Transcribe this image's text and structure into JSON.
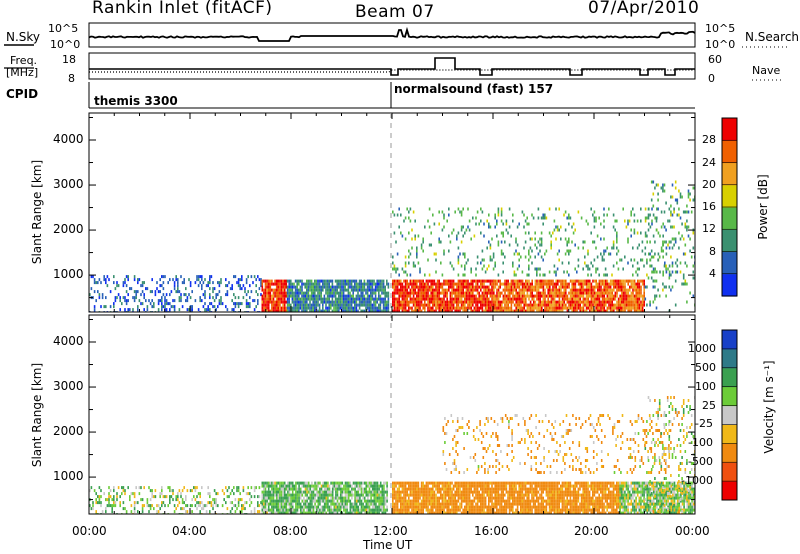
{
  "header": {
    "station": "Rankin Inlet (fitACF)",
    "beam": "Beam 07",
    "date": "07/Apr/2010"
  },
  "panels": {
    "nsky_label": "N.Sky",
    "nsearch_label": "N.Search",
    "freq_label_1": "Freq.",
    "freq_label_2": "[MHz]",
    "nave_label": "Nave",
    "cpid_label": "CPID",
    "nsky_ticks": [
      "10^5",
      "10^0"
    ],
    "nsearch_ticks": [
      "10^5",
      "10^0"
    ],
    "freq_ticks": [
      "18",
      "8"
    ],
    "nave_ticks": [
      "60",
      "0"
    ],
    "cpid_segments": [
      "themis 3300",
      "normalsound (fast) 157"
    ]
  },
  "axes": {
    "x_ticks": [
      "00:00",
      "04:00",
      "08:00",
      "12:00",
      "16:00",
      "20:00",
      "00:00"
    ],
    "x_label": "Time UT",
    "y_label_1": "Slant Range [km]",
    "y_label_2": "Slant Range [km]",
    "y_ticks": [
      "1000",
      "2000",
      "3000",
      "4000"
    ]
  },
  "colorbars": {
    "power_label": "Power [dB]",
    "power_ticks": [
      "4",
      "8",
      "12",
      "16",
      "20",
      "24",
      "28"
    ],
    "power_colors": [
      "#1030f0",
      "#2860b8",
      "#3a9070",
      "#58b848",
      "#d8d000",
      "#f0a020",
      "#f06000",
      "#ee0000"
    ],
    "velocity_label": "Velocity [m s⁻¹]",
    "velocity_ticks": [
      "1000",
      "500",
      "100",
      "25",
      "-25",
      "-100",
      "-500",
      "-1000"
    ],
    "velocity_colors": [
      "#1840c8",
      "#2e7a88",
      "#3aa050",
      "#6ccc38",
      "#c8c8c8",
      "#f0b818",
      "#f08a10",
      "#f05010",
      "#ee0000"
    ]
  },
  "chart_data": [
    {
      "type": "heatmap",
      "title": "Rankin Inlet (fitACF)  Beam 07  07/Apr/2010",
      "quantity": "Power [dB]",
      "xlabel": "Time UT",
      "ylabel": "Slant Range [km]",
      "x_range": [
        "00:00",
        "24:00"
      ],
      "ylim": [
        180,
        4600
      ],
      "value_range": [
        0,
        32
      ],
      "regions": [
        {
          "x": [
            "00:00",
            "06:50"
          ],
          "y": [
            180,
            1000
          ],
          "value": 6,
          "density": "sparse"
        },
        {
          "x": [
            "06:50",
            "07:50"
          ],
          "y": [
            180,
            900
          ],
          "value": 28
        },
        {
          "x": [
            "07:50",
            "11:50"
          ],
          "y": [
            180,
            900
          ],
          "value": 8
        },
        {
          "x": [
            "12:00",
            "16:00"
          ],
          "y": [
            180,
            900
          ],
          "value": 28
        },
        {
          "x": [
            "16:00",
            "22:00"
          ],
          "y": [
            180,
            900
          ],
          "value": 26
        },
        {
          "x": [
            "12:00",
            "23:00"
          ],
          "y": [
            1000,
            2500
          ],
          "value": 12,
          "density": "scattered"
        },
        {
          "x": [
            "22:00",
            "24:00"
          ],
          "y": [
            180,
            3100
          ],
          "value": 12,
          "density": "scattered"
        }
      ]
    },
    {
      "type": "heatmap",
      "quantity": "Velocity [m s-1]",
      "xlabel": "Time UT",
      "ylabel": "Slant Range [km]",
      "x_range": [
        "00:00",
        "24:00"
      ],
      "ylim": [
        180,
        4600
      ],
      "value_range": [
        -1000,
        1000
      ],
      "regions": [
        {
          "x": [
            "00:00",
            "06:50"
          ],
          "y": [
            180,
            800
          ],
          "value": 50,
          "density": "sparse"
        },
        {
          "x": [
            "06:50",
            "11:50"
          ],
          "y": [
            180,
            900
          ],
          "value": 100
        },
        {
          "x": [
            "12:00",
            "21:00"
          ],
          "y": [
            180,
            900
          ],
          "value": -200
        },
        {
          "x": [
            "21:00",
            "24:00"
          ],
          "y": [
            180,
            900
          ],
          "value": 50
        },
        {
          "x": [
            "14:00",
            "23:00"
          ],
          "y": [
            1100,
            2400
          ],
          "value": -100,
          "density": "scattered"
        },
        {
          "x": [
            "22:00",
            "24:00"
          ],
          "y": [
            180,
            2800
          ],
          "value": 0,
          "density": "scattered"
        }
      ]
    }
  ]
}
